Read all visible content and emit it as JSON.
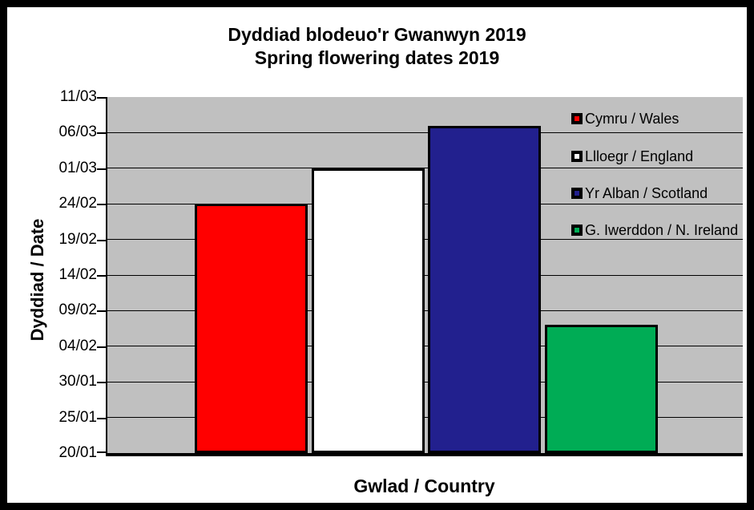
{
  "title": {
    "line1": "Dyddiad blodeuo'r Gwanwyn 2019",
    "line2": "Spring flowering dates 2019"
  },
  "y_axis": {
    "title": "Dyddiad / Date",
    "tick_labels_top_to_bottom": [
      "11/03",
      "06/03",
      "01/03",
      "24/02",
      "19/02",
      "14/02",
      "09/02",
      "04/02",
      "30/01",
      "25/01",
      "20/01"
    ]
  },
  "x_axis": {
    "title": "Gwlad / Country"
  },
  "colors": {
    "plot_background": "#C0C0C0",
    "axis_and_grid": "#000000",
    "frame_border": "#000000",
    "page_background": "#FFFFFF"
  },
  "chart_data": {
    "type": "bar",
    "title": "Dyddiad blodeuo'r Gwanwyn 2019 / Spring flowering dates 2019",
    "xlabel": "Gwlad / Country",
    "ylabel": "Dyddiad / Date",
    "ylim": [
      "20/01",
      "11/03"
    ],
    "y_tick_interval_days": 5,
    "y_ticks_bottom_to_top": [
      "20/01",
      "25/01",
      "30/01",
      "04/02",
      "09/02",
      "14/02",
      "19/02",
      "24/02",
      "01/03",
      "06/03",
      "11/03"
    ],
    "grid": true,
    "legend_position": "inside-right",
    "series": [
      {
        "name": "Cymru / Wales",
        "value": "24/02",
        "day_offset_from_20_01": 35,
        "color": "#FF0000"
      },
      {
        "name": "Llloegr / England",
        "value": "01/03",
        "day_offset_from_20_01": 40,
        "color": "#FFFFFF"
      },
      {
        "name": "Yr Alban / Scotland",
        "value": "07/03",
        "day_offset_from_20_01": 46,
        "color": "#22208E"
      },
      {
        "name": "G. Iwerddon / N. Ireland",
        "value": "07/02",
        "day_offset_from_20_01": 18,
        "color": "#00AC55"
      }
    ],
    "day_span": 50
  }
}
